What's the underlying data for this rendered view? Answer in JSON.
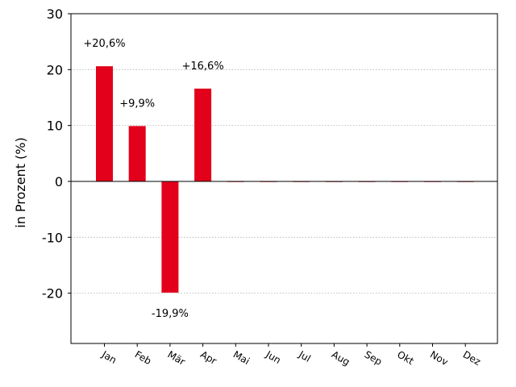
{
  "chart_data": {
    "type": "bar",
    "title": "",
    "xlabel": "",
    "ylabel": "in Prozent (%)",
    "categories": [
      "Jan",
      "Feb",
      "Mär",
      "Apr",
      "Mai",
      "Jun",
      "Jul",
      "Aug",
      "Sep",
      "Okt",
      "Nov",
      "Dez"
    ],
    "values": [
      20.6,
      9.9,
      -19.9,
      16.6,
      0,
      0,
      0,
      0,
      0,
      0,
      0,
      0
    ],
    "data_labels": [
      "+20,6%",
      "+9,9%",
      "-19,9%",
      "+16,6%",
      "",
      "",
      "",
      "",
      "",
      "",
      "",
      ""
    ],
    "ylim": [
      -29,
      30
    ],
    "yticks": [
      -20,
      -10,
      0,
      10,
      20,
      30
    ],
    "ytick_labels": [
      "-20",
      "-10",
      "0",
      "10",
      "20",
      "30"
    ],
    "grid": "horizontal dotted",
    "legend": "none",
    "colors": {
      "bar": "#e2001a",
      "grid": "#b0b0b0",
      "axis": "#000000",
      "zero_line": "#000000"
    }
  }
}
